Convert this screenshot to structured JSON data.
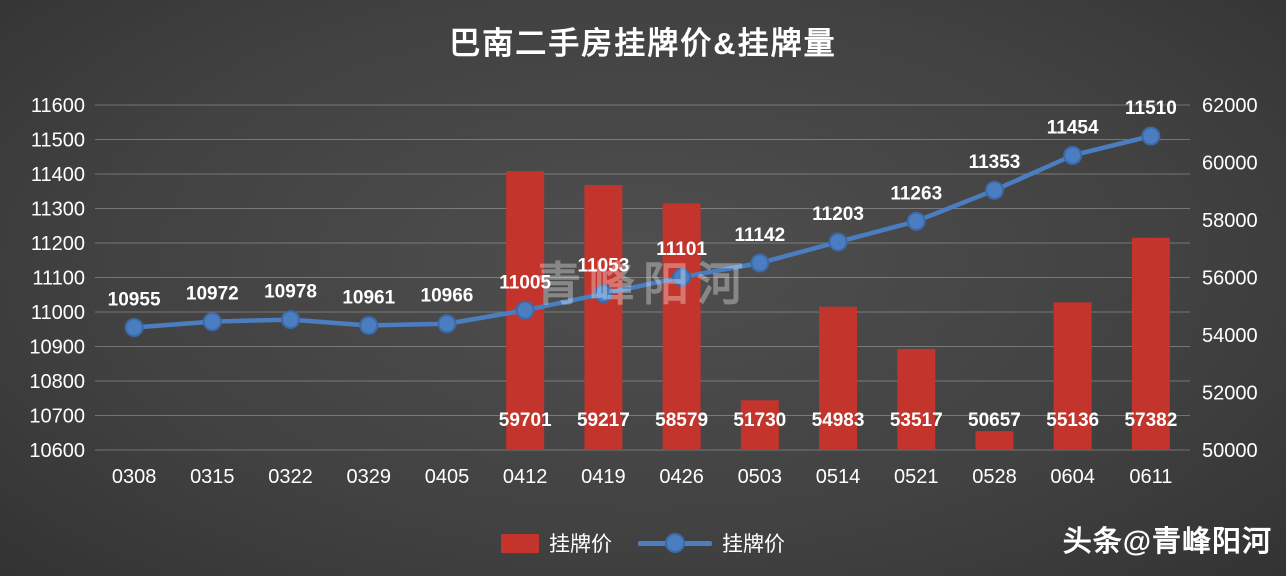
{
  "title": "巴南二手房挂牌价&挂牌量",
  "watermark_center": "青峰阳河",
  "credit": "头条@青峰阳河",
  "colors": {
    "bar": "#c2342c",
    "line": "#4a7ec0",
    "text": "#ffffff",
    "grid": "rgba(255,255,255,0.28)"
  },
  "legend": [
    {
      "type": "bar",
      "label": "挂牌价",
      "color": "#c2342c"
    },
    {
      "type": "line",
      "label": "挂牌价",
      "color": "#4a7ec0"
    }
  ],
  "chart_data": {
    "type": "combo",
    "title": "巴南二手房挂牌价&挂牌量",
    "categories": [
      "0308",
      "0315",
      "0322",
      "0329",
      "0405",
      "0412",
      "0419",
      "0426",
      "0503",
      "0514",
      "0521",
      "0528",
      "0604",
      "0611"
    ],
    "series": [
      {
        "name": "挂牌价",
        "type": "bar",
        "axis": "right",
        "color": "#c2342c",
        "values": [
          null,
          null,
          null,
          null,
          null,
          59701,
          59217,
          58579,
          51730,
          54983,
          53517,
          50657,
          55136,
          57382
        ]
      },
      {
        "name": "挂牌价",
        "type": "line",
        "axis": "left",
        "color": "#4a7ec0",
        "values": [
          10955,
          10972,
          10978,
          10961,
          10966,
          11005,
          11053,
          11101,
          11142,
          11203,
          11263,
          11353,
          11454,
          11510
        ]
      }
    ],
    "left_axis": {
      "min": 10600,
      "max": 11600,
      "step": 100
    },
    "right_axis": {
      "min": 50000,
      "max": 62000,
      "step": 2000
    },
    "grid": true,
    "legend_position": "bottom"
  }
}
